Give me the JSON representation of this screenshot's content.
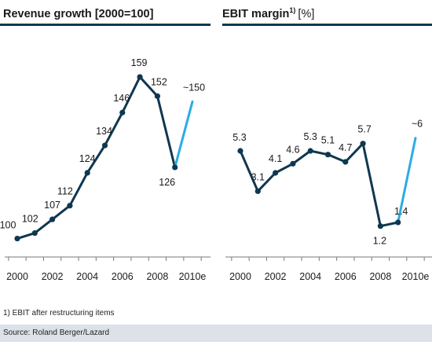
{
  "colors": {
    "series": "#0f3750",
    "estimate": "#2bace2",
    "rule": "#0f3750",
    "axis": "#7a7a7a",
    "source_bar": "#dde1e8"
  },
  "footnote": "1) EBIT after restructuring items",
  "source": "Source: Roland Berger/Lazard",
  "chart_data": [
    {
      "type": "line",
      "title": "Revenue growth [2000=100]",
      "x": [
        "2000",
        "2001",
        "2002",
        "2003",
        "2004",
        "2005",
        "2006",
        "2007",
        "2008",
        "2009",
        "2010e"
      ],
      "tick_labels": [
        "2000",
        "2002",
        "2004",
        "2006",
        "2008",
        "2010e"
      ],
      "series": [
        {
          "values": [
            100,
            102,
            107,
            112,
            124,
            134,
            146,
            159,
            152,
            126,
            150
          ]
        }
      ],
      "data_labels": [
        "100",
        "102",
        "107",
        "112",
        "124",
        "134",
        "146",
        "159",
        "152",
        "126",
        "~150"
      ],
      "estimate_from_index": 9,
      "ylim": [
        97,
        163
      ],
      "grid": false
    },
    {
      "type": "line",
      "title": "EBIT margin",
      "title_sup": "1)",
      "title_suffix": "[%]",
      "x": [
        "2000",
        "2001",
        "2002",
        "2003",
        "2004",
        "2005",
        "2006",
        "2007",
        "2008",
        "2009",
        "2010e"
      ],
      "tick_labels": [
        "2000",
        "2002",
        "2004",
        "2006",
        "2008",
        "2010e"
      ],
      "series": [
        {
          "values": [
            5.3,
            3.1,
            4.1,
            4.6,
            5.3,
            5.1,
            4.7,
            5.7,
            1.2,
            1.4,
            6.0
          ]
        }
      ],
      "data_labels": [
        "5.3",
        "3.1",
        "4.1",
        "4.6",
        "5.3",
        "5.1",
        "4.7",
        "5.7",
        "1.2",
        "1.4",
        "~6"
      ],
      "estimate_from_index": 9,
      "ylim": [
        0.8,
        6.5
      ],
      "grid": false
    }
  ]
}
